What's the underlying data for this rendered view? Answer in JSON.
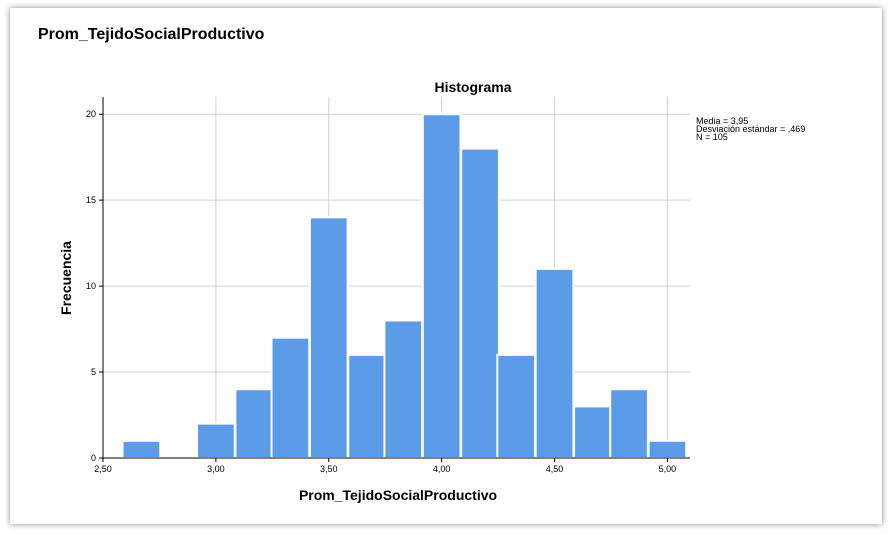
{
  "header": {
    "variable_title": "Prom_TejidoSocialProductivo"
  },
  "stats": {
    "media": "Media = 3,95",
    "sd": "Desviación estándar = ,469",
    "n": "N = 105"
  },
  "colors": {
    "bar": "#5b9be8",
    "grid": "#d0d0d0",
    "axis": "#000000"
  },
  "chart_data": {
    "type": "bar",
    "title": "Histograma",
    "xlabel": "Prom_TejidoSocialProductivo",
    "ylabel": "Frecuencia",
    "bin_width": 0.167,
    "bins": [
      {
        "x": 2.67,
        "count": 1
      },
      {
        "x": 2.83,
        "count": 0
      },
      {
        "x": 3.0,
        "count": 2
      },
      {
        "x": 3.17,
        "count": 4
      },
      {
        "x": 3.33,
        "count": 7
      },
      {
        "x": 3.5,
        "count": 14
      },
      {
        "x": 3.67,
        "count": 6
      },
      {
        "x": 3.83,
        "count": 8
      },
      {
        "x": 4.0,
        "count": 20
      },
      {
        "x": 4.17,
        "count": 18
      },
      {
        "x": 4.33,
        "count": 6
      },
      {
        "x": 4.5,
        "count": 11
      },
      {
        "x": 4.67,
        "count": 3
      },
      {
        "x": 4.83,
        "count": 4
      },
      {
        "x": 5.0,
        "count": 1
      }
    ],
    "xlim": [
      2.5,
      5.1
    ],
    "ylim": [
      0,
      21
    ],
    "x_ticks": [
      {
        "v": 2.5,
        "label": "2,50"
      },
      {
        "v": 3.0,
        "label": "3,00"
      },
      {
        "v": 3.5,
        "label": "3,50"
      },
      {
        "v": 4.0,
        "label": "4,00"
      },
      {
        "v": 4.5,
        "label": "4,50"
      },
      {
        "v": 5.0,
        "label": "5,00"
      }
    ],
    "y_ticks": [
      {
        "v": 0,
        "label": "0"
      },
      {
        "v": 5,
        "label": "5"
      },
      {
        "v": 10,
        "label": "10"
      },
      {
        "v": 15,
        "label": "15"
      },
      {
        "v": 20,
        "label": "20"
      }
    ],
    "grid": true
  }
}
